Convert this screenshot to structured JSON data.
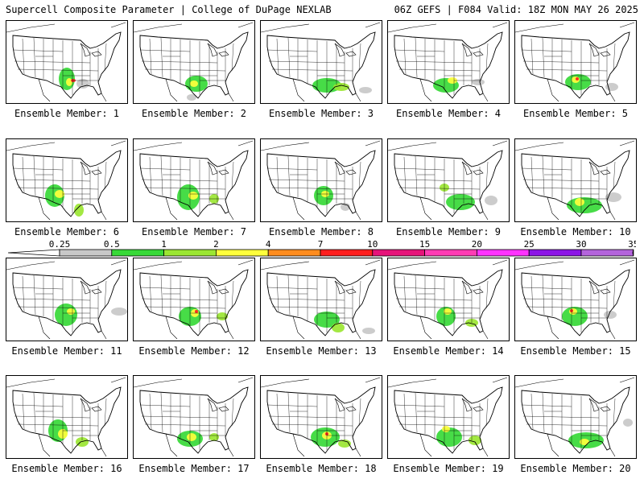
{
  "header": {
    "left": "Supercell Composite Parameter | College of DuPage NEXLAB",
    "right": "06Z GEFS | F084 Valid: 18Z MON MAY 26 2025"
  },
  "member_prefix": "Ensemble Member: ",
  "members": [
    {
      "id": 1,
      "label": "Ensemble Member: 1"
    },
    {
      "id": 2,
      "label": "Ensemble Member: 2"
    },
    {
      "id": 3,
      "label": "Ensemble Member: 3"
    },
    {
      "id": 4,
      "label": "Ensemble Member: 4"
    },
    {
      "id": 5,
      "label": "Ensemble Member: 5"
    },
    {
      "id": 6,
      "label": "Ensemble Member: 6"
    },
    {
      "id": 7,
      "label": "Ensemble Member: 7"
    },
    {
      "id": 8,
      "label": "Ensemble Member: 8"
    },
    {
      "id": 9,
      "label": "Ensemble Member: 9"
    },
    {
      "id": 10,
      "label": "Ensemble Member: 10"
    },
    {
      "id": 11,
      "label": "Ensemble Member: 11"
    },
    {
      "id": 12,
      "label": "Ensemble Member: 12"
    },
    {
      "id": 13,
      "label": "Ensemble Member: 13"
    },
    {
      "id": 14,
      "label": "Ensemble Member: 14"
    },
    {
      "id": 15,
      "label": "Ensemble Member: 15"
    },
    {
      "id": 16,
      "label": "Ensemble Member: 16"
    },
    {
      "id": 17,
      "label": "Ensemble Member: 17"
    },
    {
      "id": 18,
      "label": "Ensemble Member: 18"
    },
    {
      "id": 19,
      "label": "Ensemble Member: 19"
    },
    {
      "id": 20,
      "label": "Ensemble Member: 20"
    }
  ],
  "colorbar": {
    "ticks": [
      "0.25",
      "0.5",
      "1",
      "2",
      "4",
      "7",
      "10",
      "15",
      "20",
      "25",
      "30",
      "35"
    ],
    "colors": [
      "#c8c8c8",
      "#37d937",
      "#9be632",
      "#ffff3c",
      "#ff8c1e",
      "#ff1e1e",
      "#e6147a",
      "#ff3cb4",
      "#ff32ff",
      "#8c14e6",
      "#b464dc",
      "#3cf0f0"
    ]
  },
  "map_colors": {
    "light": "#c8c8c8",
    "green": "#37d937",
    "lime": "#9be632",
    "yellow": "#ffff3c",
    "red": "#ff1e1e"
  }
}
